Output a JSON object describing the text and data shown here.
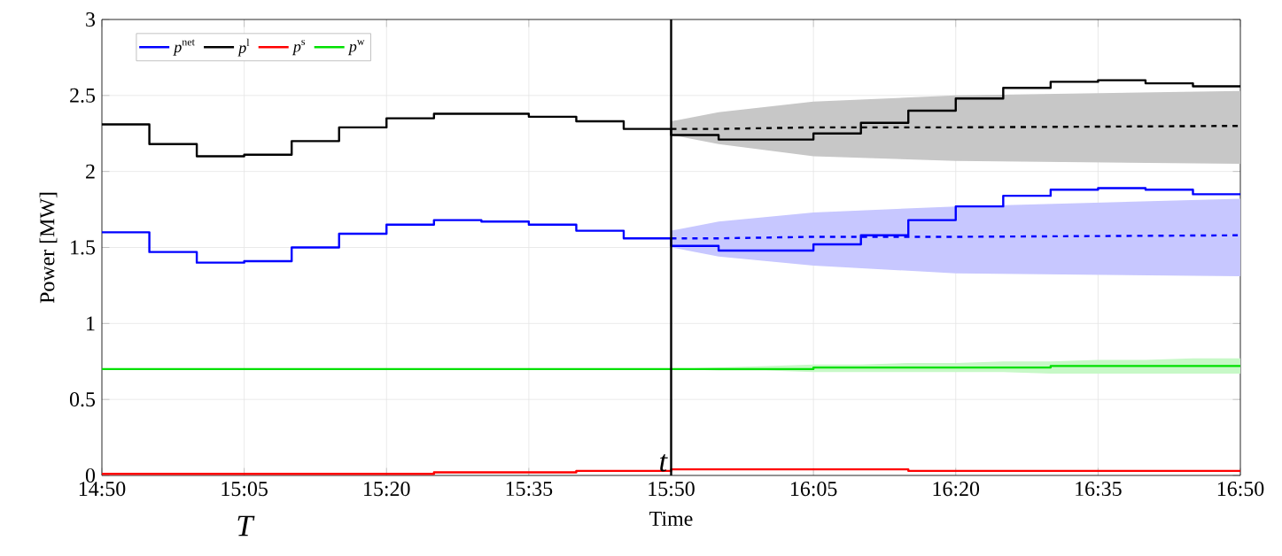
{
  "chart_data": {
    "type": "step",
    "xlabel": "Time",
    "ylabel": "Power [MW]",
    "x": [
      14.8333,
      14.9167,
      15.0,
      15.0833,
      15.1667,
      15.25,
      15.3333,
      15.4167,
      15.5,
      15.5833,
      15.6667,
      15.75,
      15.8333,
      15.9167,
      16.0,
      16.0833,
      16.1667,
      16.25,
      16.3333,
      16.4167,
      16.5,
      16.5833,
      16.6667,
      16.75,
      16.8333
    ],
    "series": [
      {
        "name": "*p*$^{net}$",
        "color": "#0000ff",
        "values": [
          1.6,
          1.47,
          1.4,
          1.41,
          1.5,
          1.59,
          1.65,
          1.68,
          1.67,
          1.65,
          1.61,
          1.56,
          1.51,
          1.48,
          1.48,
          1.52,
          1.58,
          1.68,
          1.77,
          1.84,
          1.88,
          1.89,
          1.88,
          1.85,
          1.85
        ]
      },
      {
        "name": "*p*$^{l}$",
        "color": "#000000",
        "values": [
          2.31,
          2.18,
          2.1,
          2.11,
          2.2,
          2.29,
          2.35,
          2.38,
          2.38,
          2.36,
          2.33,
          2.28,
          2.24,
          2.21,
          2.21,
          2.25,
          2.32,
          2.4,
          2.48,
          2.55,
          2.59,
          2.6,
          2.58,
          2.56,
          2.56
        ]
      },
      {
        "name": "*p*$^{s}$",
        "color": "#ff0000",
        "values": [
          0.01,
          0.01,
          0.01,
          0.01,
          0.01,
          0.01,
          0.01,
          0.02,
          0.02,
          0.02,
          0.03,
          0.03,
          0.04,
          0.04,
          0.04,
          0.04,
          0.04,
          0.03,
          0.03,
          0.03,
          0.03,
          0.03,
          0.03,
          0.03,
          0.03
        ]
      },
      {
        "name": "*p*$^{w}$",
        "color": "#00e000",
        "values": [
          0.7,
          0.7,
          0.7,
          0.7,
          0.7,
          0.7,
          0.7,
          0.7,
          0.7,
          0.7,
          0.7,
          0.7,
          0.7,
          0.7,
          0.7,
          0.71,
          0.71,
          0.71,
          0.71,
          0.71,
          0.72,
          0.72,
          0.72,
          0.72,
          0.72
        ],
        "lower": [
          null,
          null,
          null,
          null,
          null,
          null,
          null,
          null,
          null,
          null,
          null,
          null,
          0.7,
          0.69,
          0.69,
          0.68,
          0.68,
          0.68,
          0.68,
          0.68,
          0.67,
          0.67,
          0.67,
          0.67,
          0.67
        ],
        "upper": [
          null,
          null,
          null,
          null,
          null,
          null,
          null,
          null,
          null,
          null,
          null,
          null,
          0.7,
          0.71,
          0.72,
          0.73,
          0.73,
          0.74,
          0.74,
          0.75,
          0.75,
          0.76,
          0.76,
          0.77,
          0.77
        ]
      },
      {
        "type": "line",
        "line_style": "dashed",
        "color": "#000000",
        "x": [
          15.8333,
          15.9167,
          16.0833,
          16.3333,
          16.8333
        ],
        "values": [
          2.28,
          2.28,
          2.29,
          2.29,
          2.3
        ],
        "lower": [
          2.24,
          2.18,
          2.1,
          2.07,
          2.05
        ],
        "upper": [
          2.33,
          2.39,
          2.46,
          2.5,
          2.53
        ]
      },
      {
        "type": "line",
        "line_style": "dashed",
        "color": "#0000ff",
        "x": [
          15.8333,
          15.9167,
          16.0833,
          16.3333,
          16.8333
        ],
        "values": [
          1.56,
          1.56,
          1.57,
          1.57,
          1.58
        ],
        "lower": [
          1.5,
          1.44,
          1.38,
          1.33,
          1.31
        ],
        "upper": [
          1.61,
          1.67,
          1.73,
          1.77,
          1.82
        ]
      }
    ],
    "xlim": [
      14.8333,
      16.8333
    ],
    "xticks": [
      {
        "value": 14.8333,
        "label": "14:50"
      },
      {
        "value": 15.0833,
        "label": "15:05"
      },
      {
        "value": 15.3333,
        "label": "15:20"
      },
      {
        "value": 15.5833,
        "label": "15:35"
      },
      {
        "value": 15.8333,
        "label": "15:50"
      },
      {
        "value": 16.0833,
        "label": "16:05"
      },
      {
        "value": 16.3333,
        "label": "16:20"
      },
      {
        "value": 16.5833,
        "label": "16:35"
      },
      {
        "value": 16.8333,
        "label": "16:50"
      }
    ],
    "ylim": [
      0,
      3
    ],
    "yticks": [
      0,
      0.5,
      1,
      1.5,
      2,
      2.5,
      3
    ],
    "ref_lines": [
      {
        "axis": "x",
        "value": 15.8333,
        "label": "*t*",
        "color": "#000000"
      }
    ],
    "annotations": [
      "*T*"
    ],
    "grid": true,
    "legend": "top left",
    "marker": "none"
  }
}
